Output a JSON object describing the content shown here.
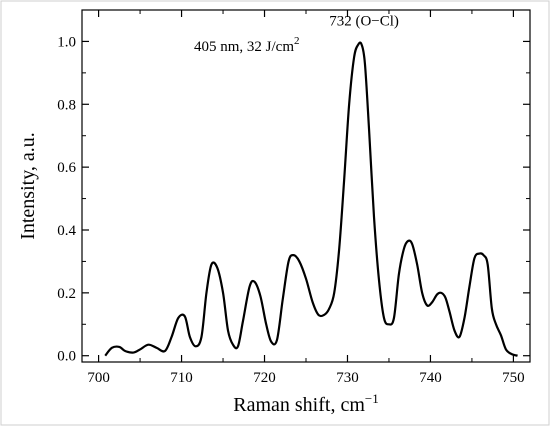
{
  "chart_data": {
    "type": "line",
    "title": "",
    "xlabel": "Raman shift, cm",
    "xlabel_superscript": "−1",
    "ylabel": "Intensity, a.u.",
    "xlim": [
      698,
      752
    ],
    "ylim": [
      -0.02,
      1.1
    ],
    "xticks": [
      700,
      710,
      720,
      730,
      740,
      750
    ],
    "yticks": [
      0.0,
      0.2,
      0.4,
      0.6,
      0.8,
      1.0
    ],
    "xtick_labels": [
      "700",
      "710",
      "720",
      "730",
      "740",
      "750"
    ],
    "ytick_labels": [
      "0.0",
      "0.2",
      "0.4",
      "0.6",
      "0.8",
      "1.0"
    ],
    "grid": false,
    "annotations": [
      {
        "text": "405 nm, 32 J/cm",
        "superscript": "2",
        "x": 711.5,
        "y": 0.97
      },
      {
        "text": "732 (O−Cl)",
        "x": 732,
        "y": 1.05
      }
    ],
    "series": [
      {
        "color": "#000000",
        "x": [
          700.8,
          701.6,
          702.5,
          703.2,
          704.2,
          705.0,
          706.0,
          707.0,
          708.0,
          708.8,
          709.6,
          710.4,
          711.0,
          711.7,
          712.4,
          713.0,
          713.6,
          714.3,
          715.0,
          715.6,
          716.2,
          716.8,
          717.4,
          718.2,
          718.8,
          719.5,
          720.2,
          720.8,
          721.5,
          722.2,
          722.9,
          723.5,
          724.2,
          725.0,
          725.8,
          726.5,
          727.2,
          727.8,
          728.4,
          729.0,
          729.6,
          730.2,
          730.8,
          731.3,
          731.7,
          732.1,
          732.6,
          733.2,
          733.8,
          734.4,
          735.0,
          735.6,
          736.2,
          736.8,
          737.3,
          737.8,
          738.4,
          739.0,
          739.6,
          740.2,
          740.8,
          741.3,
          741.8,
          742.3,
          742.9,
          743.5,
          744.1,
          744.7,
          745.3,
          745.9,
          746.4,
          746.9,
          747.4,
          747.9,
          748.5,
          749.1,
          749.8,
          750.5
        ],
        "y": [
          0.0,
          0.025,
          0.028,
          0.015,
          0.01,
          0.02,
          0.035,
          0.025,
          0.015,
          0.06,
          0.12,
          0.125,
          0.06,
          0.03,
          0.06,
          0.2,
          0.29,
          0.28,
          0.2,
          0.08,
          0.035,
          0.03,
          0.11,
          0.22,
          0.235,
          0.19,
          0.1,
          0.045,
          0.05,
          0.18,
          0.3,
          0.32,
          0.3,
          0.245,
          0.17,
          0.13,
          0.13,
          0.15,
          0.2,
          0.34,
          0.56,
          0.8,
          0.95,
          0.99,
          0.99,
          0.93,
          0.72,
          0.44,
          0.24,
          0.12,
          0.1,
          0.12,
          0.26,
          0.34,
          0.365,
          0.355,
          0.29,
          0.2,
          0.16,
          0.17,
          0.195,
          0.2,
          0.185,
          0.14,
          0.08,
          0.06,
          0.12,
          0.22,
          0.31,
          0.325,
          0.32,
          0.29,
          0.15,
          0.1,
          0.065,
          0.02,
          0.005,
          0.0
        ]
      }
    ]
  }
}
